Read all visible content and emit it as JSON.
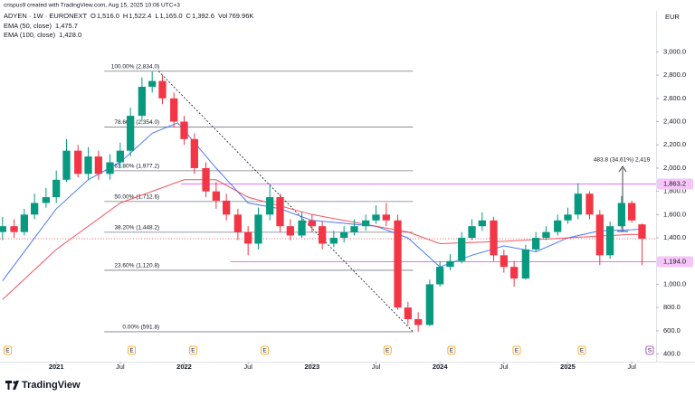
{
  "chart_data": {
    "type": "candlestick",
    "attribution": "crispus9 created with TradingView.com, Aug 15, 2025 10:06 UTC+3",
    "symbol": "ADYEN · 1W · EURONEXT",
    "ohlc_legend": [
      {
        "key": "O",
        "value": "1,516.0"
      },
      {
        "key": "H",
        "value": "1,522.4"
      },
      {
        "key": "L",
        "value": "1,165.0"
      },
      {
        "key": "C",
        "value": "1,392.6"
      },
      {
        "key": "Vol",
        "value": "769.96K"
      }
    ],
    "currency": "EUR",
    "brand": "TradingView",
    "up_color": "#089981",
    "down_color": "#f23645",
    "grid": false,
    "xlim": [
      2020.56,
      2025.69
    ],
    "xticks": [
      2021,
      {
        "value": 2021.5,
        "label": "Jul"
      },
      2022,
      {
        "value": 2022.5,
        "label": "Jul"
      },
      2023,
      {
        "value": 2023.5,
        "label": "Jul"
      },
      2024,
      {
        "value": 2024.5,
        "label": "Jul"
      },
      2025,
      {
        "value": 2025.5,
        "label": "Jul"
      }
    ],
    "ylim": [
      350,
      3330
    ],
    "yticks": [
      {
        "value": 3000,
        "label": "3,000.0"
      },
      {
        "value": 2800,
        "label": "2,800.0"
      },
      {
        "value": 2600,
        "label": "2,600.0"
      },
      {
        "value": 2400,
        "label": "2,400.0"
      },
      {
        "value": 2200,
        "label": "2,200.0"
      },
      {
        "value": 2000,
        "label": "2,000.0"
      },
      {
        "value": 1800,
        "label": "1,800.0"
      },
      {
        "value": 1600,
        "label": "1,600.0"
      },
      {
        "value": 1400,
        "label": "1,400.0"
      },
      {
        "value": 1000,
        "label": "1,000.0"
      },
      {
        "value": 800,
        "label": "800.0"
      },
      {
        "value": 600,
        "label": "600.0"
      },
      {
        "value": 400,
        "label": "400.0"
      }
    ],
    "x": [
      2020.58,
      2020.67,
      2020.75,
      2020.83,
      2020.92,
      2021.0,
      2021.08,
      2021.17,
      2021.25,
      2021.33,
      2021.42,
      2021.5,
      2021.58,
      2021.67,
      2021.75,
      2021.83,
      2021.92,
      2022.0,
      2022.08,
      2022.17,
      2022.25,
      2022.33,
      2022.42,
      2022.5,
      2022.58,
      2022.67,
      2022.75,
      2022.83,
      2022.92,
      2023.0,
      2023.08,
      2023.17,
      2023.25,
      2023.33,
      2023.42,
      2023.5,
      2023.58,
      2023.67,
      2023.75,
      2023.83,
      2023.92,
      2024.0,
      2024.08,
      2024.17,
      2024.25,
      2024.33,
      2024.42,
      2024.5,
      2024.58,
      2024.67,
      2024.75,
      2024.83,
      2024.92,
      2025.0,
      2025.08,
      2025.17,
      2025.25,
      2025.33,
      2025.42,
      2025.5,
      2025.58
    ],
    "open": [
      1450,
      1500,
      1450,
      1600,
      1700,
      1750,
      1900,
      2150,
      1950,
      2100,
      1950,
      2050,
      2150,
      2450,
      2700,
      2750,
      2600,
      2400,
      2250,
      2000,
      1800,
      1720,
      1600,
      1450,
      1350,
      1600,
      1750,
      1500,
      1420,
      1550,
      1500,
      1350,
      1400,
      1450,
      1500,
      1550,
      1600,
      1550,
      800,
      700,
      650,
      1000,
      1150,
      1200,
      1400,
      1500,
      1550,
      1250,
      1150,
      1050,
      1300,
      1400,
      1450,
      1550,
      1600,
      1780,
      1600,
      1250,
      1500,
      1700,
      1516
    ],
    "high": [
      1580,
      1560,
      1650,
      1780,
      1830,
      1980,
      2250,
      2200,
      2180,
      2150,
      2120,
      2220,
      2520,
      2780,
      2834,
      2800,
      2650,
      2450,
      2300,
      2050,
      1880,
      1780,
      1650,
      1500,
      1660,
      1863.2,
      1780,
      1560,
      1620,
      1600,
      1540,
      1460,
      1500,
      1560,
      1600,
      1680,
      1700,
      1600,
      850,
      760,
      1040,
      1200,
      1260,
      1450,
      1560,
      1620,
      1580,
      1300,
      1200,
      1340,
      1450,
      1500,
      1600,
      1660,
      1870,
      1800,
      1640,
      1540,
      1760,
      1720,
      1522.4
    ],
    "low": [
      1380,
      1400,
      1420,
      1560,
      1660,
      1700,
      1880,
      1920,
      1900,
      1900,
      1900,
      2000,
      2100,
      2400,
      2650,
      2550,
      2350,
      2200,
      1950,
      1750,
      1650,
      1550,
      1380,
      1250,
      1300,
      1550,
      1450,
      1380,
      1400,
      1450,
      1300,
      1320,
      1360,
      1420,
      1460,
      1520,
      1500,
      780,
      650,
      591.8,
      640,
      980,
      1120,
      1180,
      1380,
      1460,
      1200,
      1100,
      980,
      1040,
      1280,
      1380,
      1420,
      1520,
      1560,
      1560,
      1165,
      1220,
      1480,
      1530,
      1165
    ],
    "close": [
      1500,
      1450,
      1600,
      1700,
      1750,
      1900,
      2150,
      1950,
      2100,
      1950,
      2050,
      2150,
      2450,
      2700,
      2750,
      2600,
      2400,
      2250,
      2000,
      1800,
      1720,
      1600,
      1450,
      1350,
      1600,
      1750,
      1500,
      1420,
      1550,
      1500,
      1350,
      1400,
      1450,
      1500,
      1550,
      1600,
      1550,
      800,
      700,
      650,
      1000,
      1150,
      1200,
      1400,
      1500,
      1550,
      1250,
      1150,
      1050,
      1300,
      1400,
      1450,
      1550,
      1600,
      1780,
      1600,
      1250,
      1500,
      1700,
      1550,
      1392.6
    ],
    "lines": [
      {
        "name": "EMA (50, close)",
        "last_label": "1,475.7",
        "color": "#2962ff",
        "x": [
          2020.58,
          2021.0,
          2021.25,
          2021.5,
          2021.75,
          2021.95,
          2022.25,
          2022.5,
          2022.75,
          2023.0,
          2023.5,
          2023.75,
          2024.0,
          2024.25,
          2024.5,
          2024.75,
          2025.0,
          2025.25,
          2025.5,
          2025.58
        ],
        "values": [
          1030,
          1650,
          1900,
          2050,
          2300,
          2390,
          2000,
          1700,
          1650,
          1550,
          1500,
          1400,
          1150,
          1250,
          1330,
          1280,
          1400,
          1460,
          1470,
          1475.7
        ]
      },
      {
        "name": "EMA (100, close)",
        "last_label": "1,428.0",
        "color": "#f23645",
        "x": [
          2020.58,
          2021.0,
          2021.5,
          2022.0,
          2022.25,
          2022.5,
          2023.0,
          2023.5,
          2023.75,
          2024.0,
          2024.5,
          2025.0,
          2025.5,
          2025.58
        ],
        "values": [
          870,
          1300,
          1700,
          1900,
          1900,
          1750,
          1600,
          1500,
          1450,
          1350,
          1370,
          1400,
          1430,
          1428
        ]
      }
    ],
    "fib_x": [
      2021.8,
      2023.79
    ],
    "fib_levels": [
      {
        "value": 2834,
        "label": "100.00% (2,834.0)"
      },
      {
        "value": 2354,
        "label": "78.60% (2,354.0)"
      },
      {
        "value": 1977.2,
        "label": "61.80% (1,977.2)"
      },
      {
        "value": 1712.6,
        "label": "50.00% (1,712.6)"
      },
      {
        "value": 1448.2,
        "label": "38.20% (1,448.2)"
      },
      {
        "value": 1120.8,
        "label": "23.60% (1,120.8)"
      },
      {
        "value": 591.8,
        "label": "0.00% (591.8)"
      }
    ],
    "trend_line": {
      "x": [
        2021.8,
        2023.79
      ],
      "y": [
        2834,
        591.8
      ]
    },
    "levels": [
      {
        "value": 1863.2,
        "label": "1,863.2"
      },
      {
        "value": 1194,
        "label": "1,194.0"
      }
    ],
    "last_price": 1392.6,
    "measure_label": "483.8 (34.61%) 2,419",
    "events": [
      {
        "x": 2020.62,
        "label": "E"
      },
      {
        "x": 2021.59,
        "label": "E"
      },
      {
        "x": 2022.07,
        "label": "E"
      },
      {
        "x": 2022.63,
        "label": "E"
      },
      {
        "x": 2023.59,
        "label": "E"
      },
      {
        "x": 2024.09,
        "label": "E"
      },
      {
        "x": 2024.6,
        "label": "E"
      },
      {
        "x": 2025.11,
        "label": "E"
      },
      {
        "x": 2025.64,
        "label": "S"
      }
    ]
  }
}
